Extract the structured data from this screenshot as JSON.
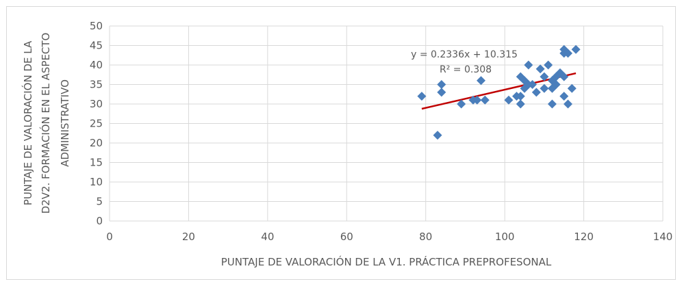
{
  "chart_data": {
    "type": "scatter",
    "title": "",
    "xlabel": "PUNTAJE DE VALORACIÓN DE LA V1. PRÁCTICA PREPROFESONAL",
    "ylabel_lines": [
      "PUNTAJE DE VALORACIÓN DE LA",
      "D2V2. FORMACIÓN EN EL ASPECTO",
      "ADMINISTRATIVO"
    ],
    "xlim": [
      0,
      140
    ],
    "ylim": [
      0,
      50
    ],
    "xticks": [
      0,
      20,
      40,
      60,
      80,
      100,
      120,
      140
    ],
    "yticks": [
      0,
      5,
      10,
      15,
      20,
      25,
      30,
      35,
      40,
      45,
      50
    ],
    "grid": "vertical and horizontal",
    "marker_color": "#4a7ebb",
    "trendline": {
      "type": "linear",
      "slope": 0.2336,
      "intercept": 10.315,
      "x_range": [
        79,
        118
      ],
      "color": "#c00000",
      "equation": "y = 0.2336x + 10.315",
      "r2": "R² = 0.308"
    },
    "points": [
      [
        79,
        32
      ],
      [
        83,
        22
      ],
      [
        84,
        35
      ],
      [
        84,
        33
      ],
      [
        89,
        30
      ],
      [
        92,
        31
      ],
      [
        93,
        31
      ],
      [
        94,
        36
      ],
      [
        95,
        31
      ],
      [
        101,
        31
      ],
      [
        103,
        32
      ],
      [
        104,
        37
      ],
      [
        104,
        32
      ],
      [
        104,
        30
      ],
      [
        105,
        34
      ],
      [
        105,
        36
      ],
      [
        106,
        35
      ],
      [
        106,
        40
      ],
      [
        107,
        35
      ],
      [
        108,
        33
      ],
      [
        109,
        39
      ],
      [
        110,
        37
      ],
      [
        110,
        34
      ],
      [
        111,
        40
      ],
      [
        112,
        36
      ],
      [
        112,
        34
      ],
      [
        112,
        30
      ],
      [
        113,
        35
      ],
      [
        113,
        37
      ],
      [
        114,
        38
      ],
      [
        115,
        37
      ],
      [
        115,
        32
      ],
      [
        115,
        44
      ],
      [
        115,
        43
      ],
      [
        116,
        43
      ],
      [
        116,
        30
      ],
      [
        117,
        34
      ],
      [
        118,
        44
      ]
    ]
  }
}
